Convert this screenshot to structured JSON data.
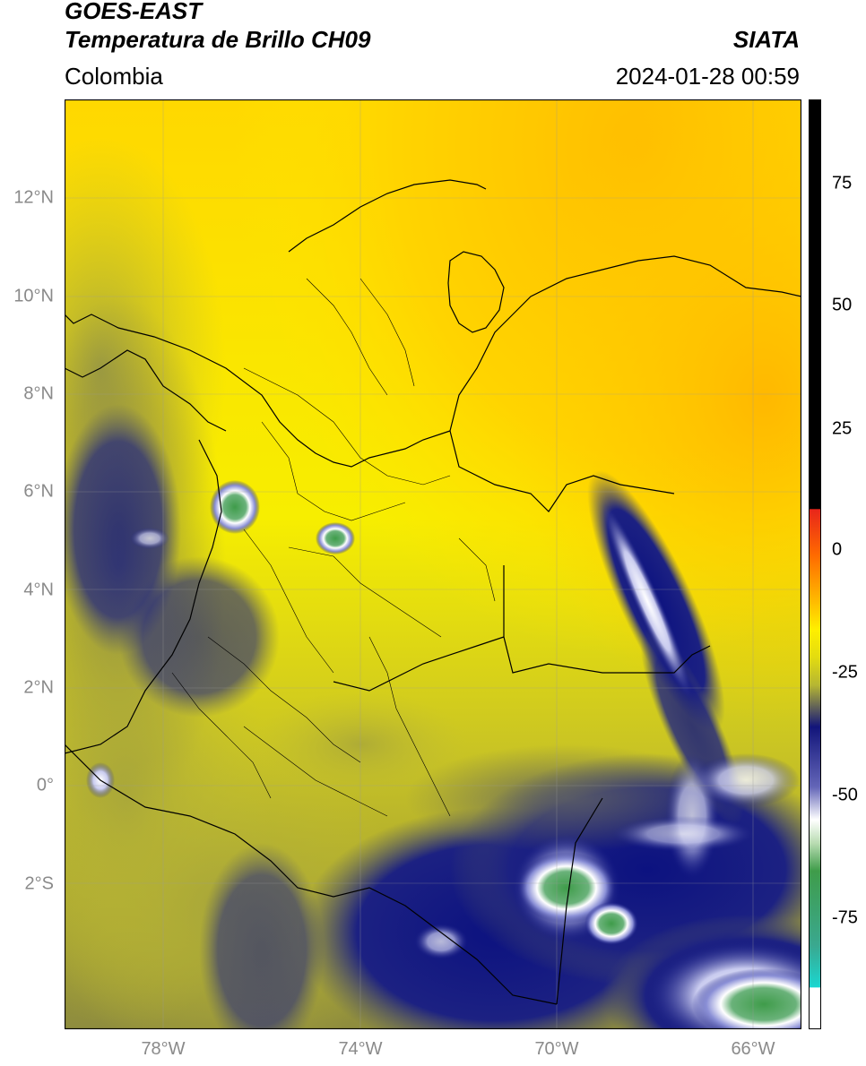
{
  "header": {
    "title_line1": "GOES-EAST",
    "title_line2": "Temperatura de Brillo CH09",
    "organization": "SIATA",
    "region": "Colombia",
    "datetime": "2024-01-28 00:59"
  },
  "map": {
    "lat_ticks": [
      "12°N",
      "10°N",
      "8°N",
      "6°N",
      "4°N",
      "2°N",
      "0°",
      "2°S"
    ],
    "lat_values": [
      12,
      10,
      8,
      6,
      4,
      2,
      0,
      -2
    ],
    "lon_ticks": [
      "78°W",
      "74°W",
      "70°W",
      "66°W"
    ],
    "lon_values": [
      -78,
      -74,
      -70,
      -66
    ],
    "lat_range": [
      -4.9,
      14.0
    ],
    "lon_range": [
      -80.0,
      -65.0
    ],
    "gridlines": true
  },
  "colorbar": {
    "tick_labels": [
      "75",
      "50",
      "25",
      "0",
      "-25",
      "-50",
      "-75"
    ],
    "tick_values": [
      75,
      50,
      25,
      0,
      -25,
      -50,
      -75
    ],
    "range": [
      -95,
      90
    ],
    "colors": {
      "warm_black": "#000000",
      "red": "#e8261a",
      "orange": "#ff9b00",
      "yellow": "#ffef00",
      "olive": "#b6b632",
      "navy": "#12157a",
      "white": "#ffffff",
      "green": "#3f9c4a",
      "cyan": "#1bd6d0"
    }
  }
}
